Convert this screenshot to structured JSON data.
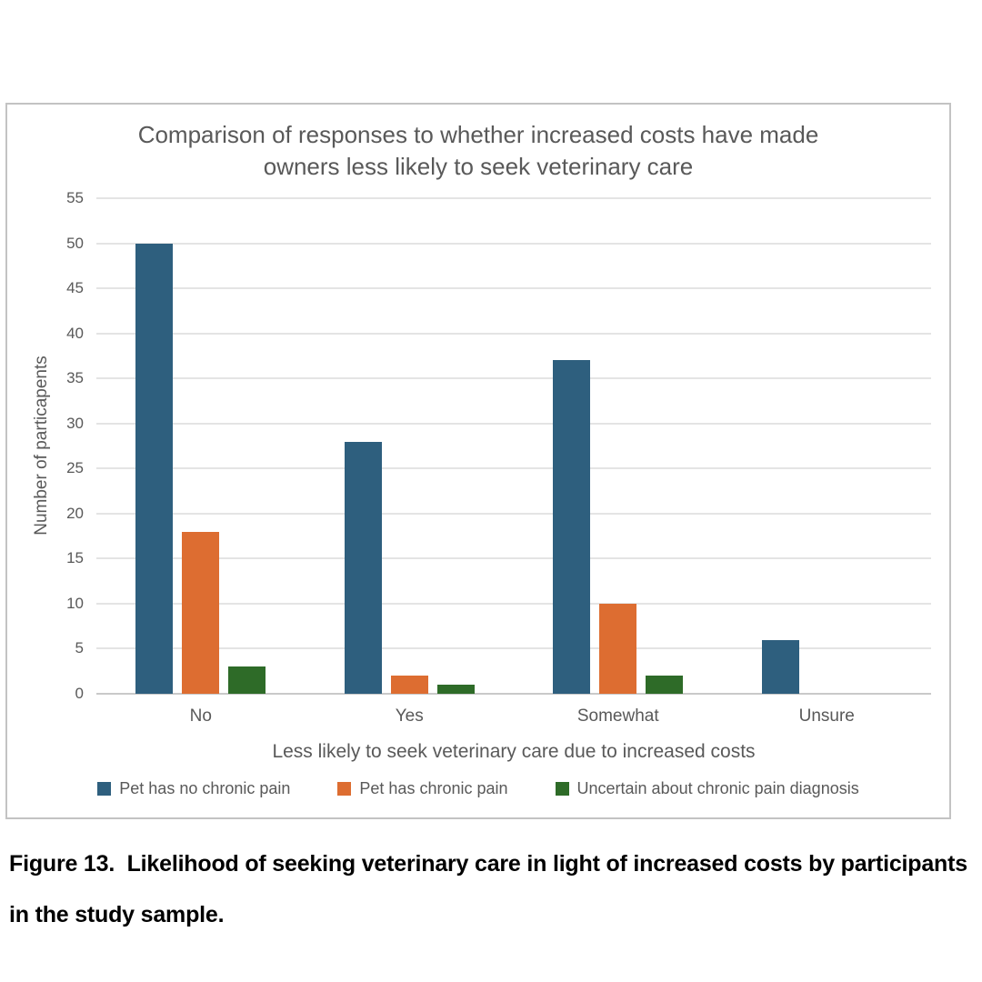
{
  "chart_data": {
    "type": "bar",
    "title": "Comparison of responses to whether increased costs have made owners less likely to seek veterinary care",
    "xlabel": "Less likely to seek veterinary care due to increased costs",
    "ylabel": "Number of particapents",
    "categories": [
      "No",
      "Yes",
      "Somewhat",
      "Unsure"
    ],
    "series": [
      {
        "name": "Pet has no chronic pain",
        "color": "#2e5f7e",
        "values": [
          50,
          28,
          37,
          6
        ]
      },
      {
        "name": "Pet has chronic pain",
        "color": "#dd6d31",
        "values": [
          18,
          2,
          10,
          0
        ]
      },
      {
        "name": "Uncertain about chronic pain diagnosis",
        "color": "#2e6b28",
        "values": [
          3,
          1,
          2,
          0
        ]
      }
    ],
    "ylim": [
      0,
      55
    ],
    "ytick_step": 5,
    "grid": true,
    "legend_position": "bottom",
    "colors": {
      "axis_text": "#595959",
      "gridline": "#e4e4e4",
      "frame_border": "#c3c3c3"
    }
  },
  "caption": {
    "label": "Figure 13.",
    "text": "Likelihood of seeking veterinary care in light of increased costs by participants in the study sample."
  }
}
